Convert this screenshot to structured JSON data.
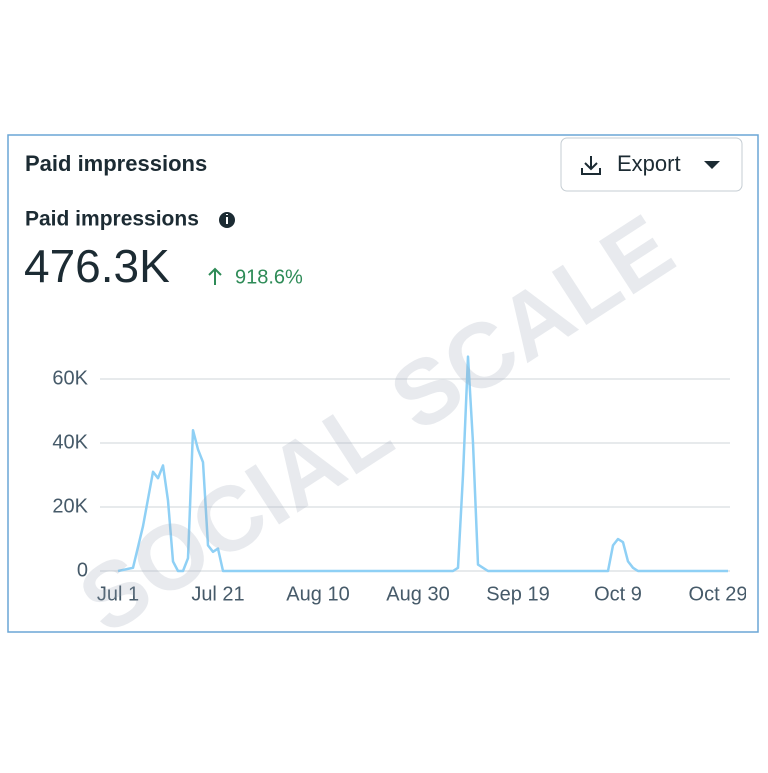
{
  "header": {
    "title": "Paid impressions",
    "export_button": "Export"
  },
  "metric": {
    "label": "Paid impressions",
    "value": "476.3K",
    "change": "918.6%"
  },
  "watermark": "SOCIAL SCALE",
  "chart_data": {
    "type": "line",
    "color": "#8fd0f5",
    "grid": true,
    "x": [
      "Jul 1",
      "Jul 4",
      "Jul 6",
      "Jul 8",
      "Jul 9",
      "Jul 10",
      "Jul 11",
      "Jul 12",
      "Jul 13",
      "Jul 14",
      "Jul 15",
      "Jul 16",
      "Jul 17",
      "Jul 18",
      "Jul 19",
      "Jul 20",
      "Jul 21",
      "Jul 22",
      "Sep 6",
      "Sep 7",
      "Sep 8",
      "Sep 9",
      "Sep 10",
      "Sep 11",
      "Sep 12",
      "Sep 13",
      "Oct 7",
      "Oct 8",
      "Oct 9",
      "Oct 10",
      "Oct 11",
      "Oct 12",
      "Oct 13",
      "Oct 31"
    ],
    "values": [
      0,
      1000,
      14000,
      31000,
      29000,
      33000,
      22000,
      3000,
      0,
      0,
      4000,
      44000,
      38000,
      34000,
      8000,
      6000,
      7000,
      0,
      0,
      1000,
      30000,
      67000,
      40000,
      2000,
      1000,
      0,
      0,
      8000,
      10000,
      9000,
      3000,
      1000,
      0,
      0
    ],
    "xlim": [
      "Jul 1",
      "Oct 31"
    ],
    "xticks": [
      "Jul 1",
      "Jul 21",
      "Aug 10",
      "Aug 30",
      "Sep 19",
      "Oct 9",
      "Oct 29"
    ],
    "ylim": [
      0,
      70000
    ],
    "yticks": [
      0,
      {
        "value": 20000,
        "label": "20K"
      },
      {
        "value": 40000,
        "label": "40K"
      },
      {
        "value": 60000,
        "label": "60K"
      }
    ]
  }
}
